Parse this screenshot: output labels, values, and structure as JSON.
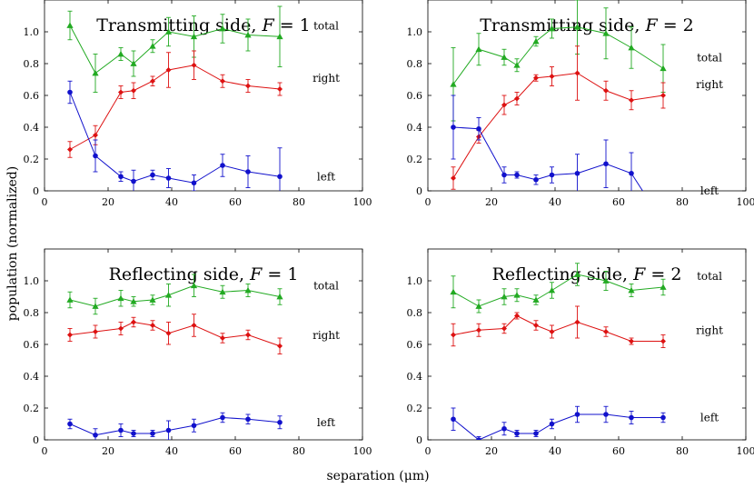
{
  "figure": {
    "ylabel": "population (normalized)",
    "xlabel": "separation (μm)",
    "colors": {
      "total": "#22aa22",
      "right": "#dd1111",
      "left": "#1111cc"
    }
  },
  "chart_data": [
    {
      "type": "line",
      "title": "Transmitting side, F = 1",
      "xlim": [
        0,
        100
      ],
      "ylim": [
        0,
        1.2
      ],
      "xticks": [
        0,
        20,
        40,
        60,
        80,
        100
      ],
      "yticks": [
        0,
        0.2,
        0.4,
        0.6,
        0.8,
        1.0
      ],
      "grid": false,
      "series": [
        {
          "name": "total",
          "marker": "triangle",
          "x": [
            8,
            16,
            24,
            28,
            34,
            39,
            47,
            56,
            64,
            74
          ],
          "y": [
            1.04,
            0.74,
            0.86,
            0.8,
            0.91,
            1.0,
            0.97,
            1.02,
            0.98,
            0.97
          ],
          "err": [
            0.09,
            0.12,
            0.04,
            0.08,
            0.04,
            0.09,
            0.13,
            0.09,
            0.1,
            0.19
          ]
        },
        {
          "name": "right",
          "marker": "diamond",
          "x": [
            8,
            16,
            24,
            28,
            34,
            39,
            47,
            56,
            64,
            74
          ],
          "y": [
            0.26,
            0.35,
            0.62,
            0.63,
            0.69,
            0.76,
            0.79,
            0.69,
            0.66,
            0.64
          ],
          "err": [
            0.05,
            0.06,
            0.04,
            0.05,
            0.03,
            0.11,
            0.09,
            0.04,
            0.04,
            0.04
          ]
        },
        {
          "name": "left",
          "marker": "circle",
          "x": [
            8,
            16,
            24,
            28,
            34,
            39,
            47,
            56,
            64,
            74
          ],
          "y": [
            0.62,
            0.22,
            0.09,
            0.06,
            0.1,
            0.08,
            0.05,
            0.16,
            0.12,
            0.09
          ],
          "err": [
            0.07,
            0.1,
            0.03,
            0.07,
            0.03,
            0.06,
            0.05,
            0.07,
            0.1,
            0.18
          ]
        }
      ]
    },
    {
      "type": "line",
      "title": "Transmitting side, F = 2",
      "xlim": [
        0,
        100
      ],
      "ylim": [
        0,
        1.2
      ],
      "xticks": [
        0,
        20,
        40,
        60,
        80,
        100
      ],
      "yticks": [
        0,
        0.2,
        0.4,
        0.6,
        0.8,
        1.0
      ],
      "grid": false,
      "series": [
        {
          "name": "total",
          "marker": "triangle",
          "x": [
            8,
            16,
            24,
            28,
            34,
            39,
            47,
            56,
            64,
            74
          ],
          "y": [
            0.67,
            0.89,
            0.84,
            0.79,
            0.94,
            1.02,
            1.03,
            0.99,
            0.9,
            0.77
          ],
          "err": [
            0.23,
            0.1,
            0.05,
            0.04,
            0.03,
            0.06,
            0.17,
            0.16,
            0.13,
            0.15
          ]
        },
        {
          "name": "right",
          "marker": "diamond",
          "x": [
            8,
            16,
            24,
            28,
            34,
            39,
            47,
            56,
            64,
            74
          ],
          "y": [
            0.08,
            0.34,
            0.54,
            0.58,
            0.71,
            0.72,
            0.74,
            0.63,
            0.57,
            0.6
          ],
          "err": [
            0.07,
            0.04,
            0.06,
            0.04,
            0.02,
            0.06,
            0.17,
            0.06,
            0.06,
            0.08
          ]
        },
        {
          "name": "left",
          "marker": "circle",
          "x": [
            8,
            16,
            24,
            28,
            34,
            39,
            47,
            56,
            64,
            74
          ],
          "y": [
            0.4,
            0.39,
            0.1,
            0.1,
            0.07,
            0.1,
            0.11,
            0.17,
            0.11,
            -0.2
          ],
          "err": [
            0.2,
            0.07,
            0.05,
            0.02,
            0.03,
            0.05,
            0.12,
            0.15,
            0.13,
            0
          ]
        }
      ]
    },
    {
      "type": "line",
      "title": "Reflecting side, F = 1",
      "xlim": [
        0,
        100
      ],
      "ylim": [
        0,
        1.2
      ],
      "xticks": [
        0,
        20,
        40,
        60,
        80,
        100
      ],
      "yticks": [
        0,
        0.2,
        0.4,
        0.6,
        0.8,
        1.0
      ],
      "grid": false,
      "series": [
        {
          "name": "total",
          "marker": "triangle",
          "x": [
            8,
            16,
            24,
            28,
            34,
            39,
            47,
            56,
            64,
            74
          ],
          "y": [
            0.88,
            0.84,
            0.89,
            0.87,
            0.88,
            0.91,
            0.97,
            0.93,
            0.94,
            0.9
          ],
          "err": [
            0.05,
            0.05,
            0.05,
            0.03,
            0.03,
            0.07,
            0.07,
            0.04,
            0.04,
            0.05
          ]
        },
        {
          "name": "right",
          "marker": "diamond",
          "x": [
            8,
            16,
            24,
            28,
            34,
            39,
            47,
            56,
            64,
            74
          ],
          "y": [
            0.66,
            0.68,
            0.7,
            0.74,
            0.72,
            0.67,
            0.72,
            0.64,
            0.66,
            0.59
          ],
          "err": [
            0.04,
            0.04,
            0.04,
            0.03,
            0.03,
            0.07,
            0.07,
            0.03,
            0.03,
            0.05
          ]
        },
        {
          "name": "left",
          "marker": "circle",
          "x": [
            8,
            16,
            24,
            28,
            34,
            39,
            47,
            56,
            64,
            74
          ],
          "y": [
            0.1,
            0.03,
            0.06,
            0.04,
            0.04,
            0.06,
            0.09,
            0.14,
            0.13,
            0.11
          ],
          "err": [
            0.03,
            0.04,
            0.04,
            0.02,
            0.02,
            0.06,
            0.04,
            0.03,
            0.03,
            0.04
          ]
        }
      ]
    },
    {
      "type": "line",
      "title": "Reflecting side, F = 2",
      "xlim": [
        0,
        100
      ],
      "ylim": [
        0,
        1.2
      ],
      "xticks": [
        0,
        20,
        40,
        60,
        80,
        100
      ],
      "yticks": [
        0,
        0.2,
        0.4,
        0.6,
        0.8,
        1.0
      ],
      "grid": false,
      "series": [
        {
          "name": "total",
          "marker": "triangle",
          "x": [
            8,
            16,
            24,
            28,
            34,
            39,
            47,
            56,
            64,
            74
          ],
          "y": [
            0.93,
            0.84,
            0.9,
            0.91,
            0.88,
            0.94,
            1.04,
            1.0,
            0.94,
            0.96
          ],
          "err": [
            0.1,
            0.04,
            0.05,
            0.04,
            0.03,
            0.05,
            0.07,
            0.06,
            0.04,
            0.05
          ]
        },
        {
          "name": "right",
          "marker": "diamond",
          "x": [
            8,
            16,
            24,
            28,
            34,
            39,
            47,
            56,
            64,
            74
          ],
          "y": [
            0.66,
            0.69,
            0.7,
            0.78,
            0.72,
            0.68,
            0.74,
            0.68,
            0.62,
            0.62
          ],
          "err": [
            0.07,
            0.04,
            0.03,
            0.02,
            0.03,
            0.04,
            0.1,
            0.03,
            0.02,
            0.04
          ]
        },
        {
          "name": "left",
          "marker": "circle",
          "x": [
            8,
            16,
            24,
            28,
            34,
            39,
            47,
            56,
            64,
            74
          ],
          "y": [
            0.13,
            0.0,
            0.07,
            0.04,
            0.04,
            0.1,
            0.16,
            0.16,
            0.14,
            0.14
          ],
          "err": [
            0.07,
            0.02,
            0.04,
            0.02,
            0.02,
            0.03,
            0.05,
            0.05,
            0.04,
            0.03
          ]
        }
      ]
    }
  ]
}
